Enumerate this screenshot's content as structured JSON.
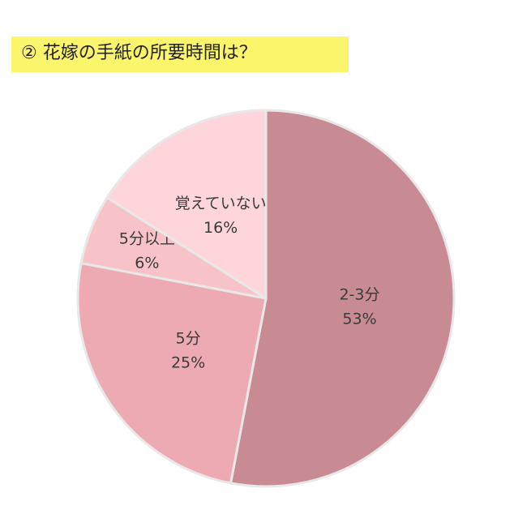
{
  "chart_data": {
    "type": "pie",
    "title": "② 花嫁の手紙の所要時間は？",
    "categories": [
      "2-3分",
      "5分",
      "5分以上",
      "覚えていない"
    ],
    "values": [
      53,
      25,
      6,
      16
    ],
    "value_labels": [
      "53%",
      "25%",
      "6%",
      "16%"
    ],
    "colors": [
      "#c98b93",
      "#eeaab2",
      "#f7c3c8",
      "#fdd5da"
    ]
  }
}
